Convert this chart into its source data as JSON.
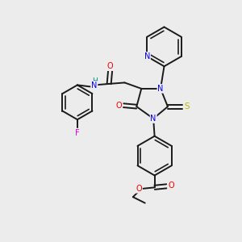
{
  "bg_color": "#ececec",
  "bond_color": "#1a1a1a",
  "bond_width": 1.4,
  "atom_colors": {
    "N": "#0000ee",
    "O": "#ee0000",
    "F": "#dd00dd",
    "S": "#bbbb00",
    "H": "#008888",
    "C": "#1a1a1a"
  },
  "figsize": [
    3.0,
    3.0
  ],
  "dpi": 100
}
